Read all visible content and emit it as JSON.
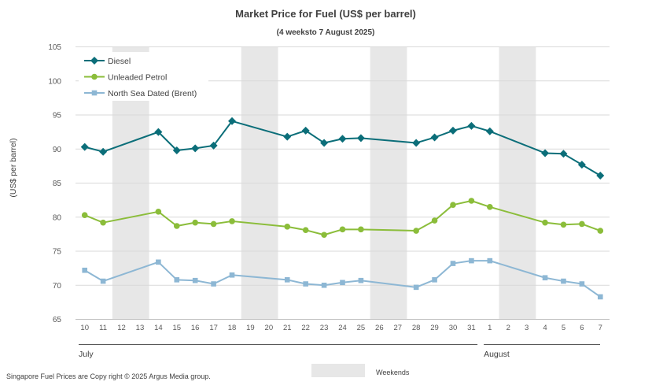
{
  "chart_data": {
    "type": "line",
    "title": "Market Price for Fuel (US$ per barrel)",
    "subtitle": "(4 weeksto 7 August 2025)",
    "ylabel": "(US$ per barrel)",
    "ylim": [
      65,
      105
    ],
    "yticks": [
      65,
      70,
      75,
      80,
      85,
      90,
      95,
      100,
      105
    ],
    "grid": true,
    "legend_position": "top-left",
    "categories": [
      "10",
      "11",
      "12",
      "13",
      "14",
      "15",
      "16",
      "17",
      "18",
      "19",
      "20",
      "21",
      "22",
      "23",
      "24",
      "25",
      "26",
      "27",
      "28",
      "29",
      "30",
      "31",
      "1",
      "2",
      "3",
      "4",
      "5",
      "6",
      "7"
    ],
    "months": [
      {
        "label": "July",
        "from": 0,
        "to": 21
      },
      {
        "label": "August",
        "from": 22,
        "to": 28
      }
    ],
    "weekend_bands": [
      [
        2,
        3
      ],
      [
        9,
        10
      ],
      [
        16,
        17
      ],
      [
        23,
        24
      ]
    ],
    "series": [
      {
        "name": "Diesel",
        "color": "#0b6e79",
        "marker": "diamond",
        "values": [
          90.3,
          89.6,
          null,
          null,
          92.5,
          89.8,
          90.1,
          90.5,
          94.1,
          null,
          null,
          91.8,
          92.7,
          90.9,
          91.5,
          91.6,
          null,
          null,
          90.9,
          91.7,
          92.7,
          93.4,
          92.6,
          null,
          null,
          89.4,
          89.3,
          87.7,
          86.1
        ]
      },
      {
        "name": "Unleaded Petrol",
        "color": "#8bbd3a",
        "marker": "circle",
        "values": [
          80.3,
          79.2,
          null,
          null,
          80.8,
          78.7,
          79.2,
          79.0,
          79.4,
          null,
          null,
          78.6,
          78.1,
          77.4,
          78.2,
          78.2,
          null,
          null,
          78.0,
          79.5,
          81.8,
          82.4,
          81.5,
          null,
          null,
          79.2,
          78.9,
          79.0,
          78.0
        ]
      },
      {
        "name": "North Sea Dated (Brent)",
        "color": "#8db7d4",
        "marker": "square",
        "values": [
          72.2,
          70.6,
          null,
          null,
          73.4,
          70.8,
          70.7,
          70.2,
          71.5,
          null,
          null,
          70.8,
          70.2,
          70.0,
          70.4,
          70.7,
          null,
          null,
          69.7,
          70.8,
          73.2,
          73.6,
          73.6,
          null,
          null,
          71.1,
          70.6,
          70.2,
          68.3
        ]
      }
    ],
    "footer": "Singapore Fuel Prices are Copy right © 2025 Argus Media group.",
    "weekend_legend": "Weekends",
    "weekend_color": "#e7e7e7"
  }
}
